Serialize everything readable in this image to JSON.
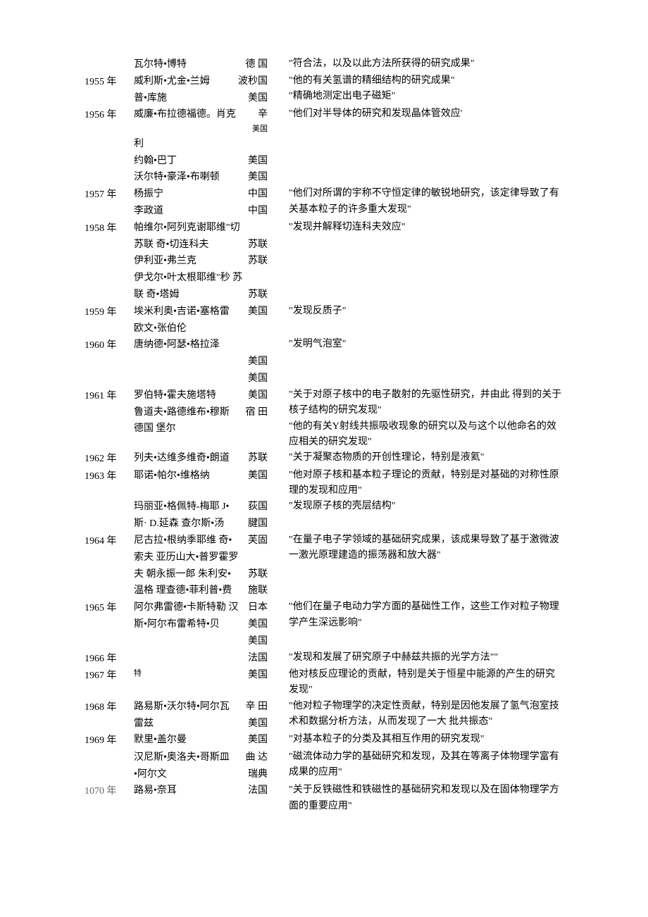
{
  "entries": [
    {
      "year": "",
      "laureates": [
        {
          "name": "瓦尔特•博特",
          "country": "德 国"
        }
      ],
      "desc": "\"符合法，以及以此方法所获得的研究成果\""
    },
    {
      "year": "1955 年",
      "laureates": [
        {
          "name": "威利斯•尤金•兰姆",
          "country": "波秒国"
        },
        {
          "name": "普•库施",
          "country": "美国"
        }
      ],
      "desc_line1": "\"他的有关氢谱的精细结构的研究成果\"",
      "desc_line2": "\"精确地测定出电子磁矩\""
    },
    {
      "year": "1956 年",
      "laureates": [
        {
          "name": "威廉•布拉德福德。肖克",
          "country": "辛",
          "country_small": "美国"
        },
        {
          "name": "利",
          "country": ""
        },
        {
          "name": "约翰•巴丁",
          "country": "美国"
        },
        {
          "name": "沃尔特•豪泽•布喇顿",
          "country": "美国"
        }
      ],
      "desc": "\"他们对半导体的研究和发现晶体管效应'"
    },
    {
      "year": "1957 年",
      "laureates": [
        {
          "name": "杨振宁",
          "country": "中国"
        },
        {
          "name": "李政道",
          "country": "中国"
        }
      ],
      "desc": "\"他们对所谓的宇称不守恒定律的敏锐地研究，该定律导致了有关基本粒子的许多重大发现\""
    },
    {
      "year": "1958 年",
      "laureates": [
        {
          "name": "帕维尔•阿列克谢耶维\"切",
          "country": ""
        },
        {
          "name": "苏联 奇•切连科夫",
          "country": "苏联"
        },
        {
          "name": "伊利亚•弗兰克",
          "country": "苏联"
        },
        {
          "name": "伊戈尔•叶太根耶维\"秒 苏",
          "country": ""
        },
        {
          "name": "联 奇•塔姆",
          "country": "苏联"
        }
      ],
      "desc": "\"发现并解释切连科夫效应\""
    },
    {
      "year": "1959 年",
      "laureates": [
        {
          "name": "埃米利奥•吉诺•塞格雷",
          "country": "美国"
        },
        {
          "name": "欧文•张伯伦",
          "country": ""
        }
      ],
      "desc": "\"发现反质子\""
    },
    {
      "year": "1960 年",
      "laureates": [
        {
          "name": "唐纳德•阿瑟•格拉泽",
          "country": ""
        },
        {
          "name": "",
          "country": "美国"
        },
        {
          "name": "",
          "country": "美国"
        }
      ],
      "desc": "\"发明气泡室\""
    },
    {
      "year": "1961 年",
      "laureates": [
        {
          "name": "罗伯特•霍夫施塔特",
          "country": "美国"
        },
        {
          "name": "鲁道夫•路德维布•穆斯",
          "country": "宿 田"
        },
        {
          "name": "德国 堡尔",
          "country": ""
        }
      ],
      "desc_line1": "\"关于对原子核中的电子散射的先驱性研究，并由此 得到的关于核子结构的研究发现\"",
      "desc_line2": "\"他的有关Y射线共振吸收现象的研究以及与这个以他命名的效应相关的研究发现\""
    },
    {
      "year": "1962 年",
      "laureates": [
        {
          "name": "列夫•达维多维奇•朗道",
          "country": "苏联"
        }
      ],
      "desc": "\"关于凝聚态物质的开创性理论，特别是液氦\""
    },
    {
      "year": "1963 年",
      "laureates": [
        {
          "name": "耶诺•帕尔•维格纳",
          "country": "美国"
        }
      ],
      "desc": "\"他对原子核和基本粒子理论的贡献，特别是对基础的对称性原理的发现和应用\""
    },
    {
      "year": "",
      "laureates": [
        {
          "name": "玛丽亚•格佩特-梅耶 J•",
          "country": "荻国"
        },
        {
          "name": "斯· D.延森 查尔斯•汤",
          "country": "腱国"
        }
      ],
      "desc": "\"发现原子核的壳层结构\""
    },
    {
      "year": "1964 年",
      "laureates": [
        {
          "name": "尼古拉•根纳季耶维 奇•",
          "country": "芙固"
        },
        {
          "name": "索夫 亚历山大•普罗霍罗",
          "country": ""
        },
        {
          "name": "夫 朝永振一郎 朱利安•",
          "country": "苏联"
        },
        {
          "name": "温格 理查德•菲利普•费",
          "country": "施联"
        }
      ],
      "desc": "\"在量子电子学领域的基础研究成果，该成果导致了基于激微波一激光原理建造的振荡器和放大器\""
    },
    {
      "year": "1965 年",
      "laureates": [
        {
          "name": "阿尔弗雷德•卡斯特勒 汉",
          "country": "日本"
        },
        {
          "name": "斯•阿尔布雷希特•贝",
          "country": "美国"
        },
        {
          "name": "",
          "country": "美国"
        }
      ],
      "desc": "\"他们在量子电动力学方面的基础性工作，这些工作对粒子物理学产生深远影响\""
    },
    {
      "year": "1966 年",
      "laureates": [
        {
          "name": "",
          "country": "法国"
        }
      ],
      "desc": "\"发现和发展了研究原子中赫兹共振的光学方法\"\""
    },
    {
      "year": "1967 年",
      "laureates": [
        {
          "name": "特",
          "country": "美国",
          "small": true
        }
      ],
      "desc": "他对核反应理论的贡献，特别是关于恒星中能源的产生的研究发现\""
    },
    {
      "year": "1968 年",
      "laureates": [
        {
          "name": "路易斯•沃尔特•阿尔瓦",
          "country": "辛 田"
        },
        {
          "name": "雷兹",
          "country": "美国"
        }
      ],
      "desc": "\"他对粒子物理学的决定性贡献，特别是因他发展了氢气泡室技术和数据分析方法，从而发现了一大 批共振态\""
    },
    {
      "year": "1969 年",
      "laureates": [
        {
          "name": "默里•盖尔曼",
          "country": "美国"
        }
      ],
      "desc": "\"对基本粒子的分类及其相互作用的研究发现\""
    },
    {
      "year": "",
      "laureates": [
        {
          "name": "汉尼斯•奥洛夫•哥斯皿",
          "country": "曲 达"
        },
        {
          "name": "•阿尔文",
          "country": "瑞典"
        }
      ],
      "desc": "\"磁流体动力学的基础研究和发现，及其在等离子体物理学富有成果的应用\""
    },
    {
      "year": "",
      "year_faded": "1070 年",
      "laureates": [
        {
          "name": "路易•奈耳",
          "country": "法国"
        }
      ],
      "desc": "\"关于反铁磁性和铁磁性的基础研究和发现以及在固体物理学方面的重要应用\""
    }
  ]
}
